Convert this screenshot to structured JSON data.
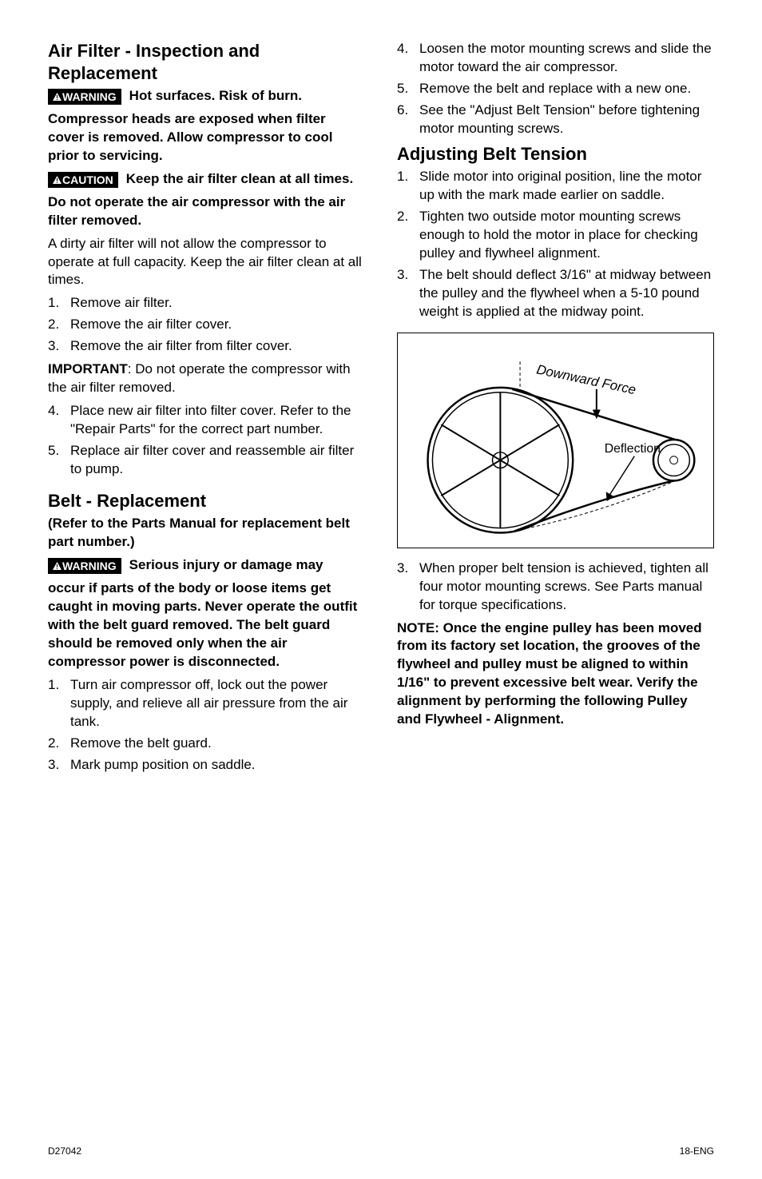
{
  "left": {
    "section1": {
      "heading": "Air Filter - Inspection and Replacement",
      "badge1": "WARNING",
      "warn1_start": "Hot surfaces. Risk of burn.",
      "warn1_cont": "Compressor heads are exposed when filter cover is removed. Allow compressor to cool prior to servicing.",
      "badge2": "CAUTION",
      "warn2_start": "Keep the air filter clean at all times.",
      "warn2_cont": "Do not operate the air compressor with the air filter removed.",
      "body1": "A dirty air filter will not allow the compressor to operate at full capacity. Keep the air filter clean at all times.",
      "list1": [
        {
          "n": "1.",
          "t": "Remove air filter."
        },
        {
          "n": "2.",
          "t": "Remove the air filter cover."
        },
        {
          "n": "3.",
          "t": "Remove the air filter from filter cover."
        }
      ],
      "important_label": "IMPORTANT",
      "important_rest": ": Do not operate the compressor with the air filter removed.",
      "list2": [
        {
          "n": "4.",
          "t": "Place new air filter into filter cover. Refer to the \"Repair Parts\" for the correct part number."
        },
        {
          "n": "5.",
          "t": "Replace air filter cover and reassemble air filter to pump."
        }
      ]
    },
    "section2": {
      "heading": "Belt - Replacement",
      "subpara": "(Refer to the Parts Manual for replacement belt part number.)",
      "badge": "WARNING",
      "warn_start": "Serious injury or damage may",
      "warn_cont": "occur if parts of the body or loose items get caught in moving parts. Never operate the outfit with the belt guard removed. The belt guard should be removed only when the air compressor power is disconnected.",
      "list": [
        {
          "n": "1.",
          "t": "Turn air compressor off, lock out the power supply, and relieve all air pressure from the air tank."
        },
        {
          "n": "2.",
          "t": "Remove the belt guard."
        },
        {
          "n": "3.",
          "t": "Mark pump position on saddle."
        }
      ]
    }
  },
  "right": {
    "list_top": [
      {
        "n": "4.",
        "t": "Loosen the motor mounting screws and slide the motor toward the air compressor."
      },
      {
        "n": "5.",
        "t": "Remove the belt and replace with a new one."
      },
      {
        "n": "6.",
        "t": "See the \"Adjust Belt Tension\" before tightening motor mounting screws."
      }
    ],
    "section1": {
      "heading": "Adjusting Belt Tension",
      "list": [
        {
          "n": "1.",
          "t": "Slide motor into original position, line the motor up with the mark made earlier on saddle."
        },
        {
          "n": "2.",
          "t": "Tighten two outside motor mounting screws enough to hold the motor in place for checking pulley and flywheel alignment."
        },
        {
          "n": "3.",
          "t": "The belt should deflect 3/16\" at midway between the pulley and the flywheel when a 5-10 pound weight is applied at the midway point."
        }
      ]
    },
    "diagram": {
      "label_force": "Downward Force",
      "label_defl": "Deflection",
      "stroke": "#000000",
      "bg": "#ffffff"
    },
    "list_after": [
      {
        "n": "3.",
        "t": "When proper belt tension is achieved, tighten all four motor mounting screws. See Parts manual for torque specifications."
      }
    ],
    "note": "NOTE: Once the engine pulley has been moved from its factory set location, the grooves of the flywheel and pulley must be aligned to within 1/16\" to prevent excessive belt wear. Verify the alignment by performing the following Pulley and Flywheel - Alignment."
  },
  "footer": {
    "left": "D27042",
    "right": "18-ENG"
  }
}
